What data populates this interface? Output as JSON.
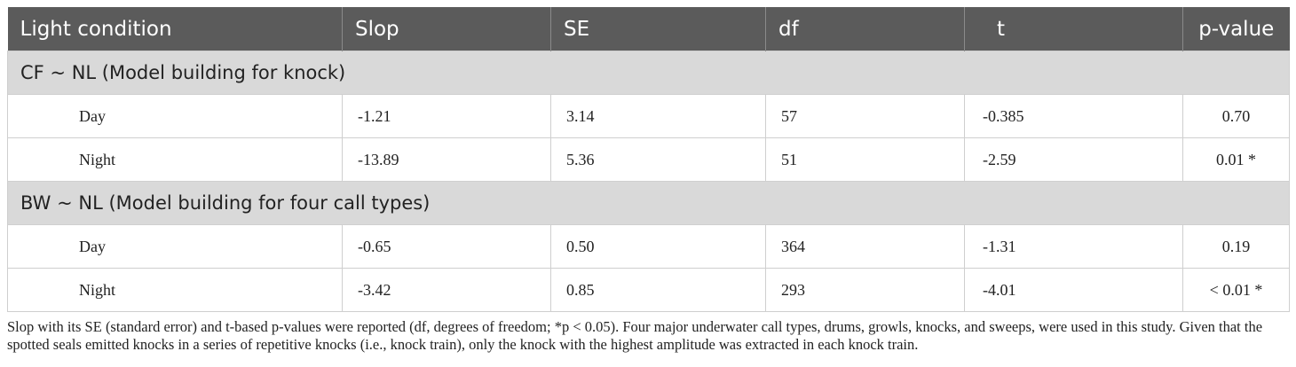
{
  "table": {
    "header": [
      "Light condition",
      "Slop",
      "SE",
      "df",
      "t",
      "p-value"
    ],
    "sections": [
      {
        "title": "CF ~ NL (Model building for knock)",
        "rows": [
          [
            "Day",
            "-1.21",
            "3.14",
            "57",
            "-0.385",
            "0.70"
          ],
          [
            "Night",
            "-13.89",
            "5.36",
            "51",
            "-2.59",
            "0.01 *"
          ]
        ]
      },
      {
        "title": "BW ~ NL (Model building for four call types)",
        "rows": [
          [
            "Day",
            "-0.65",
            "0.50",
            "364",
            "-1.31",
            "0.19"
          ],
          [
            "Night",
            "-3.42",
            "0.85",
            "293",
            "-4.01",
            "< 0.01 *"
          ]
        ]
      }
    ]
  },
  "footnote": "Slop with its SE (standard error) and t-based p-values were reported (df, degrees of freedom; *p < 0.05). Four major underwater call types, drums, growls, knocks, and sweeps, were used in this study. Given that the spotted seals emitted knocks in a series of repetitive knocks (i.e., knock train), only the knock with the highest amplitude was extracted in each knock train."
}
